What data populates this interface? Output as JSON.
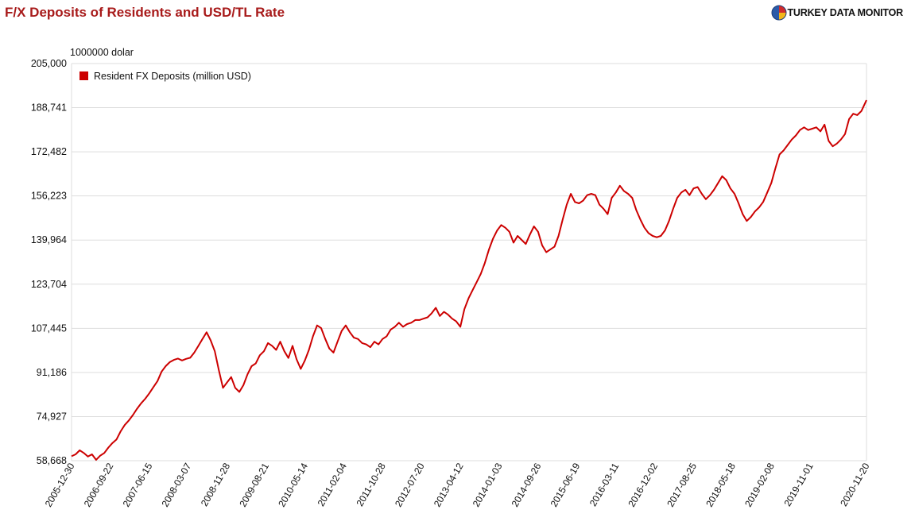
{
  "header": {
    "title": "F/X Deposits of Residents and USD/TL Rate",
    "brand": "TURKEY DATA MONITOR",
    "brand_logo_icon": "globe-logo-icon"
  },
  "colors": {
    "title": "#a81b1b",
    "series": "#cc0000",
    "grid": "#dddddd",
    "logo_blue": "#2b5aa8",
    "logo_red": "#d12b2b",
    "logo_yellow": "#f2b619"
  },
  "chart_data": {
    "type": "line",
    "title": "F/X Deposits of Residents and USD/TL Rate",
    "unit_label": "1000000 dolar",
    "legend_position": "top-left",
    "grid": true,
    "ylim": [
      58668,
      205000
    ],
    "y_ticks": [
      "58,668",
      "74,927",
      "91,186",
      "107,445",
      "123,704",
      "139,964",
      "156,223",
      "172,482",
      "188,741",
      "205,000"
    ],
    "x_ticks": [
      "2005-12-30",
      "2006-09-22",
      "2007-06-15",
      "2008-03-07",
      "2008-11-28",
      "2009-08-21",
      "2010-05-14",
      "2011-02-04",
      "2011-10-28",
      "2012-07-20",
      "2013-04-12",
      "2014-01-03",
      "2014-09-26",
      "2015-06-19",
      "2016-03-11",
      "2016-12-02",
      "2017-08-25",
      "2018-05-18",
      "2019-02-08",
      "2019-11-01",
      "2020-11-20"
    ],
    "series": [
      {
        "name": "Resident FX Deposits (million USD)",
        "points": [
          [
            "2005-12-30",
            60300
          ],
          [
            "2006-01-27",
            61000
          ],
          [
            "2006-02-24",
            62500
          ],
          [
            "2006-03-24",
            61500
          ],
          [
            "2006-04-21",
            60200
          ],
          [
            "2006-05-19",
            61000
          ],
          [
            "2006-06-16",
            59000
          ],
          [
            "2006-07-14",
            60500
          ],
          [
            "2006-08-11",
            61500
          ],
          [
            "2006-09-08",
            63500
          ],
          [
            "2006-10-06",
            65200
          ],
          [
            "2006-11-03",
            66500
          ],
          [
            "2006-12-01",
            69500
          ],
          [
            "2006-12-29",
            71800
          ],
          [
            "2007-01-26",
            73500
          ],
          [
            "2007-02-23",
            75500
          ],
          [
            "2007-03-23",
            77800
          ],
          [
            "2007-04-20",
            79800
          ],
          [
            "2007-05-18",
            81500
          ],
          [
            "2007-06-15",
            83500
          ],
          [
            "2007-07-13",
            85800
          ],
          [
            "2007-08-10",
            88000
          ],
          [
            "2007-09-07",
            91500
          ],
          [
            "2007-10-05",
            93500
          ],
          [
            "2007-11-02",
            95000
          ],
          [
            "2007-11-30",
            95800
          ],
          [
            "2007-12-28",
            96300
          ],
          [
            "2008-01-25",
            95600
          ],
          [
            "2008-02-22",
            96200
          ],
          [
            "2008-03-21",
            96600
          ],
          [
            "2008-04-18",
            98500
          ],
          [
            "2008-05-16",
            101000
          ],
          [
            "2008-06-13",
            103500
          ],
          [
            "2008-07-11",
            106000
          ],
          [
            "2008-08-08",
            103000
          ],
          [
            "2008-09-05",
            99000
          ],
          [
            "2008-10-03",
            92000
          ],
          [
            "2008-10-31",
            85500
          ],
          [
            "2008-11-28",
            87500
          ],
          [
            "2008-12-26",
            89500
          ],
          [
            "2009-01-23",
            85500
          ],
          [
            "2009-02-20",
            84000
          ],
          [
            "2009-03-20",
            86500
          ],
          [
            "2009-04-17",
            90500
          ],
          [
            "2009-05-15",
            93500
          ],
          [
            "2009-06-12",
            94500
          ],
          [
            "2009-07-10",
            97500
          ],
          [
            "2009-08-07",
            99000
          ],
          [
            "2009-09-04",
            102000
          ],
          [
            "2009-10-02",
            101000
          ],
          [
            "2009-10-30",
            99500
          ],
          [
            "2009-11-27",
            102500
          ],
          [
            "2009-12-25",
            99000
          ],
          [
            "2010-01-22",
            96500
          ],
          [
            "2010-02-19",
            101000
          ],
          [
            "2010-03-19",
            96000
          ],
          [
            "2010-04-16",
            92500
          ],
          [
            "2010-05-14",
            95500
          ],
          [
            "2010-06-11",
            99500
          ],
          [
            "2010-07-09",
            104500
          ],
          [
            "2010-08-06",
            108500
          ],
          [
            "2010-09-03",
            107500
          ],
          [
            "2010-10-01",
            103500
          ],
          [
            "2010-10-29",
            100000
          ],
          [
            "2010-11-26",
            98500
          ],
          [
            "2010-12-24",
            102500
          ],
          [
            "2011-01-21",
            106500
          ],
          [
            "2011-02-18",
            108500
          ],
          [
            "2011-03-18",
            106000
          ],
          [
            "2011-04-15",
            104000
          ],
          [
            "2011-05-13",
            103500
          ],
          [
            "2011-06-10",
            102000
          ],
          [
            "2011-07-08",
            101500
          ],
          [
            "2011-08-05",
            100500
          ],
          [
            "2011-09-02",
            102500
          ],
          [
            "2011-09-30",
            101500
          ],
          [
            "2011-10-28",
            103500
          ],
          [
            "2011-11-25",
            104500
          ],
          [
            "2011-12-23",
            107000
          ],
          [
            "2012-01-20",
            108000
          ],
          [
            "2012-02-17",
            109500
          ],
          [
            "2012-03-16",
            108000
          ],
          [
            "2012-04-13",
            109000
          ],
          [
            "2012-05-11",
            109500
          ],
          [
            "2012-06-08",
            110500
          ],
          [
            "2012-07-06",
            110500
          ],
          [
            "2012-08-03",
            111000
          ],
          [
            "2012-08-31",
            111500
          ],
          [
            "2012-09-28",
            113000
          ],
          [
            "2012-10-26",
            115000
          ],
          [
            "2012-11-23",
            112000
          ],
          [
            "2012-12-21",
            113500
          ],
          [
            "2013-01-18",
            112500
          ],
          [
            "2013-02-15",
            111000
          ],
          [
            "2013-03-15",
            110000
          ],
          [
            "2013-04-12",
            108000
          ],
          [
            "2013-05-10",
            114500
          ],
          [
            "2013-06-07",
            118500
          ],
          [
            "2013-07-05",
            121500
          ],
          [
            "2013-08-02",
            124500
          ],
          [
            "2013-08-30",
            127500
          ],
          [
            "2013-09-27",
            131500
          ],
          [
            "2013-10-25",
            136500
          ],
          [
            "2013-11-22",
            140500
          ],
          [
            "2013-12-20",
            143500
          ],
          [
            "2014-01-17",
            145500
          ],
          [
            "2014-02-14",
            144500
          ],
          [
            "2014-03-14",
            143000
          ],
          [
            "2014-04-11",
            139000
          ],
          [
            "2014-05-09",
            141500
          ],
          [
            "2014-06-06",
            140000
          ],
          [
            "2014-07-04",
            138500
          ],
          [
            "2014-08-01",
            142000
          ],
          [
            "2014-08-29",
            145000
          ],
          [
            "2014-09-26",
            143000
          ],
          [
            "2014-10-24",
            138000
          ],
          [
            "2014-11-21",
            135500
          ],
          [
            "2014-12-19",
            136500
          ],
          [
            "2015-01-16",
            137500
          ],
          [
            "2015-02-13",
            141500
          ],
          [
            "2015-03-13",
            147500
          ],
          [
            "2015-04-10",
            153000
          ],
          [
            "2015-05-08",
            157000
          ],
          [
            "2015-06-05",
            154000
          ],
          [
            "2015-07-03",
            153500
          ],
          [
            "2015-07-31",
            154500
          ],
          [
            "2015-08-28",
            156500
          ],
          [
            "2015-09-25",
            157000
          ],
          [
            "2015-10-23",
            156500
          ],
          [
            "2015-11-20",
            153000
          ],
          [
            "2015-12-18",
            151500
          ],
          [
            "2016-01-15",
            149500
          ],
          [
            "2016-02-12",
            155500
          ],
          [
            "2016-03-11",
            157500
          ],
          [
            "2016-04-08",
            160000
          ],
          [
            "2016-05-06",
            158000
          ],
          [
            "2016-06-03",
            157000
          ],
          [
            "2016-07-01",
            155500
          ],
          [
            "2016-07-29",
            151000
          ],
          [
            "2016-08-26",
            147500
          ],
          [
            "2016-09-23",
            144500
          ],
          [
            "2016-10-21",
            142500
          ],
          [
            "2016-11-18",
            141500
          ],
          [
            "2016-12-16",
            141000
          ],
          [
            "2017-01-13",
            141500
          ],
          [
            "2017-02-10",
            143500
          ],
          [
            "2017-03-10",
            147000
          ],
          [
            "2017-04-07",
            151500
          ],
          [
            "2017-05-05",
            155500
          ],
          [
            "2017-06-02",
            157500
          ],
          [
            "2017-06-30",
            158500
          ],
          [
            "2017-07-28",
            156500
          ],
          [
            "2017-08-25",
            159000
          ],
          [
            "2017-09-22",
            159500
          ],
          [
            "2017-10-20",
            157000
          ],
          [
            "2017-11-17",
            155000
          ],
          [
            "2017-12-15",
            156500
          ],
          [
            "2018-01-12",
            158500
          ],
          [
            "2018-02-09",
            161000
          ],
          [
            "2018-03-09",
            163500
          ],
          [
            "2018-04-06",
            162000
          ],
          [
            "2018-05-04",
            159000
          ],
          [
            "2018-06-01",
            157000
          ],
          [
            "2018-06-29",
            153500
          ],
          [
            "2018-07-27",
            149500
          ],
          [
            "2018-08-24",
            147000
          ],
          [
            "2018-09-21",
            148500
          ],
          [
            "2018-10-19",
            150500
          ],
          [
            "2018-11-16",
            152000
          ],
          [
            "2018-12-14",
            154000
          ],
          [
            "2019-01-11",
            157500
          ],
          [
            "2019-02-08",
            161000
          ],
          [
            "2019-03-08",
            166500
          ],
          [
            "2019-04-05",
            171500
          ],
          [
            "2019-05-03",
            173000
          ],
          [
            "2019-05-31",
            175000
          ],
          [
            "2019-06-28",
            177000
          ],
          [
            "2019-07-26",
            178500
          ],
          [
            "2019-08-23",
            180500
          ],
          [
            "2019-09-20",
            181500
          ],
          [
            "2019-10-18",
            180500
          ],
          [
            "2019-11-15",
            181000
          ],
          [
            "2019-12-13",
            181500
          ],
          [
            "2020-01-10",
            180000
          ],
          [
            "2020-02-07",
            182500
          ],
          [
            "2020-03-06",
            176500
          ],
          [
            "2020-04-03",
            174500
          ],
          [
            "2020-05-01",
            175500
          ],
          [
            "2020-05-29",
            177000
          ],
          [
            "2020-06-26",
            179000
          ],
          [
            "2020-07-24",
            184500
          ],
          [
            "2020-08-21",
            186500
          ],
          [
            "2020-09-18",
            186000
          ],
          [
            "2020-10-16",
            187500
          ],
          [
            "2020-11-20",
            191500
          ]
        ]
      }
    ]
  }
}
